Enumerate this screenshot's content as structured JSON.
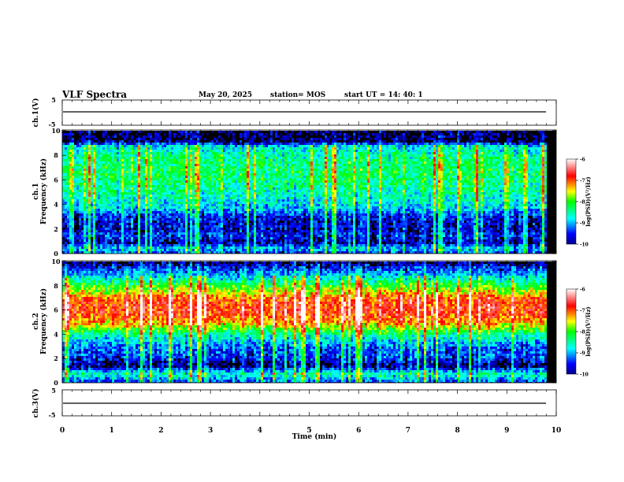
{
  "header": {
    "title": "VLF Spectra",
    "date": "May 20, 2025",
    "station": "station= MOS",
    "start": "start  UT  =   14: 40: 1"
  },
  "chart_data": {
    "type": "heatmap",
    "x_axis": {
      "label": "Time  (min)",
      "range": [
        0,
        10
      ],
      "tick_labels": [
        "0",
        "1",
        "2",
        "3",
        "4",
        "5",
        "6",
        "7",
        "8",
        "9",
        "10"
      ]
    },
    "panels": [
      {
        "ylabel": "ch.1(V)",
        "type": "line",
        "ylim": [
          -5,
          5
        ],
        "tick_labels": [
          "-5",
          "5"
        ],
        "value": 0
      },
      {
        "ylabel_1": "ch.1",
        "ylabel_2": "Frequency  (kHz)",
        "type": "heatmap",
        "ylim": [
          0,
          10
        ],
        "tick_labels": [
          "0",
          "2",
          "4",
          "6",
          "8",
          "10"
        ],
        "colorbar": {
          "label": "log(PSD)(V²/Hz)",
          "range": [
            -10,
            -6
          ],
          "tick_labels": [
            "-6",
            "-7",
            "-8",
            "-9",
            "-10"
          ]
        },
        "intensity_profile_by_khz": [
          [
            0,
            -9.6
          ],
          [
            0.5,
            -8.9
          ],
          [
            1,
            -9.8
          ],
          [
            1.6,
            -9.4
          ],
          [
            2,
            -9.7
          ],
          [
            3,
            -9.6
          ],
          [
            3.8,
            -8.9
          ],
          [
            5,
            -8.6
          ],
          [
            6,
            -8.4
          ],
          [
            7,
            -8.3
          ],
          [
            8,
            -8.5
          ],
          [
            8.8,
            -8.8
          ],
          [
            9.2,
            -9.9
          ],
          [
            10,
            -10
          ]
        ]
      },
      {
        "ylabel_1": "ch.2",
        "ylabel_2": "Frequency  (kHz)",
        "type": "heatmap",
        "ylim": [
          0,
          10
        ],
        "tick_labels": [
          "0",
          "2",
          "4",
          "6",
          "8",
          "10"
        ],
        "colorbar": {
          "label": "log(PSD)(V²/Hz)",
          "range": [
            -10,
            -6
          ],
          "tick_labels": [
            "-6",
            "-7",
            "-8",
            "-9",
            "-10"
          ]
        },
        "intensity_profile_by_khz": [
          [
            0,
            -9.5
          ],
          [
            0.8,
            -8.6
          ],
          [
            1.5,
            -9.9
          ],
          [
            2.2,
            -9.4
          ],
          [
            3,
            -9.3
          ],
          [
            4,
            -8.6
          ],
          [
            5,
            -7.3
          ],
          [
            6,
            -6.8
          ],
          [
            7,
            -7.0
          ],
          [
            8,
            -8.0
          ],
          [
            8.8,
            -8.8
          ],
          [
            9.5,
            -9.4
          ],
          [
            10,
            -9.9
          ]
        ]
      },
      {
        "ylabel": "ch.3(V)",
        "type": "line",
        "ylim": [
          -5,
          5
        ],
        "tick_labels": [
          "-5",
          "5"
        ],
        "value": 0
      }
    ]
  }
}
